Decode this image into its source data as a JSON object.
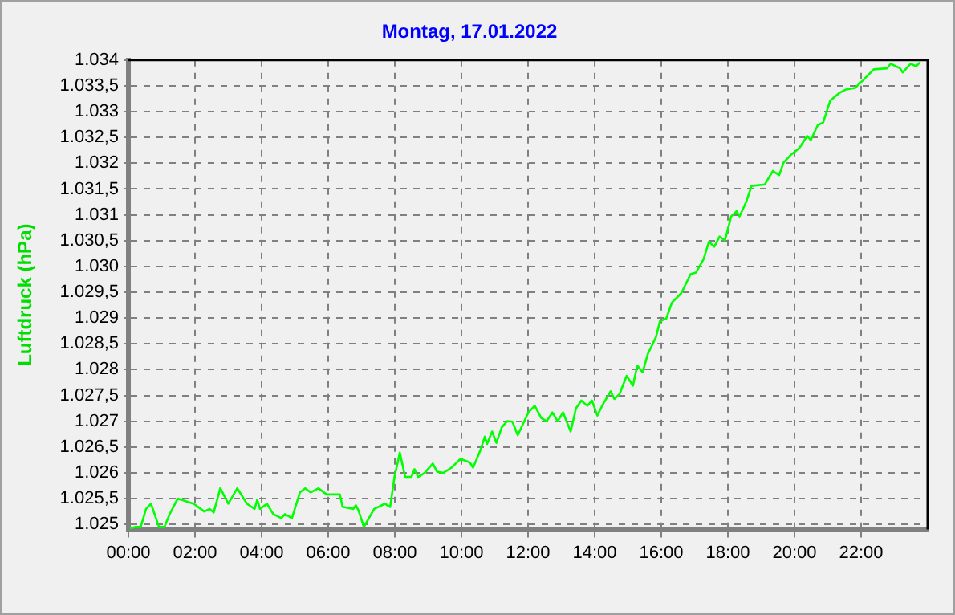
{
  "chart_data": {
    "type": "line",
    "title": "Montag, 17.01.2022",
    "ylabel": "Luftdruck (hPa)",
    "xlim": [
      0,
      24
    ],
    "xticks": [
      {
        "value": 0,
        "label": "00:00"
      },
      {
        "value": 2,
        "label": "02:00"
      },
      {
        "value": 4,
        "label": "04:00"
      },
      {
        "value": 6,
        "label": "06:00"
      },
      {
        "value": 8,
        "label": "08:00"
      },
      {
        "value": 10,
        "label": "10:00"
      },
      {
        "value": 12,
        "label": "12:00"
      },
      {
        "value": 14,
        "label": "14:00"
      },
      {
        "value": 16,
        "label": "16:00"
      },
      {
        "value": 18,
        "label": "18:00"
      },
      {
        "value": 20,
        "label": "20:00"
      },
      {
        "value": 22,
        "label": "22:00"
      }
    ],
    "ylim": [
      1024.9,
      1034
    ],
    "yticks": [
      {
        "value": 1025,
        "label": "1.025"
      },
      {
        "value": 1025.5,
        "label": "1.025,5"
      },
      {
        "value": 1026,
        "label": "1.026"
      },
      {
        "value": 1026.5,
        "label": "1.026,5"
      },
      {
        "value": 1027,
        "label": "1.027"
      },
      {
        "value": 1027.5,
        "label": "1.027,5"
      },
      {
        "value": 1028,
        "label": "1.028"
      },
      {
        "value": 1028.5,
        "label": "1.028,5"
      },
      {
        "value": 1029,
        "label": "1.029"
      },
      {
        "value": 1029.5,
        "label": "1.029,5"
      },
      {
        "value": 1030,
        "label": "1.030"
      },
      {
        "value": 1030.5,
        "label": "1.030,5"
      },
      {
        "value": 1031,
        "label": "1.031"
      },
      {
        "value": 1031.5,
        "label": "1.031,5"
      },
      {
        "value": 1032,
        "label": "1.032"
      },
      {
        "value": 1032.5,
        "label": "1.032,5"
      },
      {
        "value": 1033,
        "label": "1.033"
      },
      {
        "value": 1033.5,
        "label": "1.033,5"
      },
      {
        "value": 1034,
        "label": "1.034"
      }
    ],
    "grid": true,
    "legend": false,
    "marker": "none",
    "line_style": "solid",
    "series": [
      {
        "color": "#00ff00",
        "x": [
          0.05,
          0.2,
          0.37,
          0.53,
          0.68,
          0.92,
          1.08,
          1.24,
          1.48,
          1.96,
          2.28,
          2.44,
          2.56,
          2.76,
          3.0,
          3.27,
          3.56,
          3.79,
          3.87,
          3.95,
          4.16,
          4.35,
          4.59,
          4.7,
          4.91,
          5.15,
          5.31,
          5.47,
          5.71,
          5.95,
          6.35,
          6.43,
          6.75,
          6.83,
          6.91,
          7.07,
          7.38,
          7.7,
          7.86,
          7.99,
          8.15,
          8.31,
          8.5,
          8.59,
          8.7,
          8.9,
          9.14,
          9.27,
          9.46,
          9.7,
          9.97,
          10.25,
          10.35,
          10.57,
          10.7,
          10.77,
          10.92,
          11.05,
          11.21,
          11.37,
          11.53,
          11.69,
          12.01,
          12.2,
          12.4,
          12.56,
          12.73,
          12.89,
          13.05,
          13.28,
          13.44,
          13.6,
          13.78,
          13.92,
          14.08,
          14.24,
          14.48,
          14.59,
          14.75,
          14.96,
          15.15,
          15.28,
          15.44,
          15.6,
          15.84,
          15.96,
          16.15,
          16.32,
          16.6,
          16.88,
          17.04,
          17.27,
          17.43,
          17.59,
          17.75,
          17.91,
          18.1,
          18.26,
          18.35,
          18.55,
          18.71,
          19.11,
          19.35,
          19.54,
          19.67,
          19.9,
          20.14,
          20.38,
          20.49,
          20.7,
          20.86,
          21.07,
          21.34,
          21.55,
          21.82,
          22.06,
          22.38,
          22.78,
          22.89,
          23.17,
          23.25,
          23.49,
          23.65,
          23.78
        ],
        "values": [
          1024.92,
          1024.95,
          1024.95,
          1025.3,
          1025.4,
          1024.95,
          1024.95,
          1025.2,
          1025.5,
          1025.4,
          1025.25,
          1025.3,
          1025.23,
          1025.7,
          1025.4,
          1025.7,
          1025.4,
          1025.3,
          1025.48,
          1025.3,
          1025.4,
          1025.2,
          1025.12,
          1025.2,
          1025.12,
          1025.62,
          1025.7,
          1025.62,
          1025.7,
          1025.58,
          1025.58,
          1025.34,
          1025.3,
          1025.37,
          1025.27,
          1024.95,
          1025.3,
          1025.4,
          1025.34,
          1025.92,
          1026.39,
          1025.92,
          1025.92,
          1026.07,
          1025.92,
          1026.0,
          1026.18,
          1026.02,
          1026.0,
          1026.1,
          1026.27,
          1026.2,
          1026.1,
          1026.44,
          1026.7,
          1026.56,
          1026.8,
          1026.58,
          1026.88,
          1027.0,
          1026.99,
          1026.73,
          1027.17,
          1027.3,
          1027.06,
          1027.0,
          1027.17,
          1027.0,
          1027.17,
          1026.8,
          1027.25,
          1027.4,
          1027.3,
          1027.4,
          1027.11,
          1027.32,
          1027.58,
          1027.43,
          1027.53,
          1027.88,
          1027.69,
          1028.08,
          1027.95,
          1028.31,
          1028.63,
          1028.94,
          1028.99,
          1029.3,
          1029.48,
          1029.85,
          1029.88,
          1030.14,
          1030.48,
          1030.38,
          1030.58,
          1030.5,
          1030.97,
          1031.07,
          1030.97,
          1031.25,
          1031.56,
          1031.59,
          1031.85,
          1031.77,
          1032.01,
          1032.17,
          1032.29,
          1032.53,
          1032.45,
          1032.74,
          1032.79,
          1033.21,
          1033.36,
          1033.43,
          1033.46,
          1033.61,
          1033.82,
          1033.84,
          1033.93,
          1033.84,
          1033.76,
          1033.93,
          1033.88,
          1033.96
        ]
      }
    ]
  }
}
